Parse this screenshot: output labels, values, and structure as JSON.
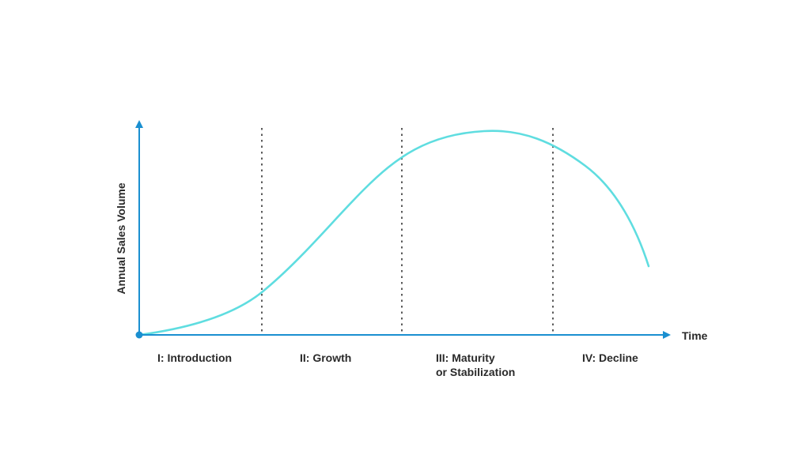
{
  "chart_data": {
    "type": "line",
    "title": "",
    "xlabel": "Time",
    "ylabel": "Annual Sales Volume",
    "stages": [
      {
        "id": "introduction",
        "lines": [
          "I: Introduction"
        ]
      },
      {
        "id": "growth",
        "lines": [
          "II: Growth"
        ]
      },
      {
        "id": "maturity",
        "lines": [
          "III: Maturity",
          "or Stabilization"
        ]
      },
      {
        "id": "decline",
        "lines": [
          "IV: Decline"
        ]
      }
    ],
    "colors": {
      "axis": "#1a8fd0",
      "curve": "#5fdde0",
      "divider": "#333333",
      "text": "#2a2a2a"
    },
    "grid": false,
    "legend": "none"
  }
}
